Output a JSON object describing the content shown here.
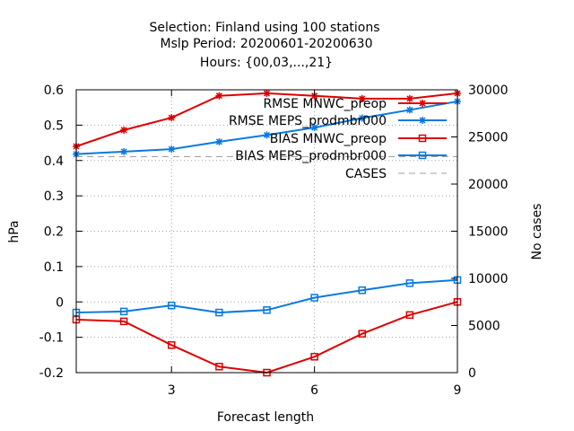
{
  "chart_data": {
    "type": "line",
    "title": [
      "Selection: Finland using   100 stations",
      "Mslp   Period: 20200601-20200630",
      "Hours: {00,03,...,21}"
    ],
    "xlabel": "Forecast length",
    "ylabel": "hPa",
    "y2label": "No cases",
    "xlim": [
      1,
      9
    ],
    "ylim": [
      -0.2,
      0.6
    ],
    "y2lim": [
      0,
      30000
    ],
    "xticks": [
      3,
      6,
      9
    ],
    "yticks": [
      -0.2,
      -0.1,
      0,
      0.1,
      0.2,
      0.3,
      0.4,
      0.5,
      0.6
    ],
    "yticklabels": [
      "-0.2",
      "-0.1",
      "0",
      "0.1",
      "0.2",
      "0.3",
      "0.4",
      "0.5",
      "0.6"
    ],
    "y2ticks": [
      0,
      5000,
      10000,
      15000,
      20000,
      25000,
      30000
    ],
    "grid": true,
    "legend_position": "top-right",
    "x": [
      1,
      2,
      3,
      4,
      5,
      6,
      7,
      8,
      9
    ],
    "series": [
      {
        "name": "RMSE MNWC_preop",
        "color": "#dd0000",
        "marker": "star",
        "axis": "y",
        "dash": false,
        "values": [
          0.44,
          0.486,
          0.521,
          0.583,
          0.59,
          0.583,
          0.575,
          0.575,
          0.59
        ]
      },
      {
        "name": "RMSE MEPS_prodmbr000",
        "color": "#0a7ae0",
        "marker": "star",
        "axis": "y",
        "dash": false,
        "values": [
          0.418,
          0.425,
          0.432,
          0.453,
          0.472,
          0.493,
          0.52,
          0.543,
          0.567
        ]
      },
      {
        "name": "BIAS MNWC_preop",
        "color": "#dd0000",
        "marker": "square",
        "axis": "y",
        "dash": false,
        "values": [
          -0.05,
          -0.055,
          -0.122,
          -0.183,
          -0.2,
          -0.155,
          -0.09,
          -0.037,
          0.0
        ]
      },
      {
        "name": "BIAS MEPS_prodmbr000",
        "color": "#0a7ae0",
        "marker": "square",
        "axis": "y",
        "dash": false,
        "values": [
          -0.03,
          -0.027,
          -0.01,
          -0.03,
          -0.023,
          0.012,
          0.033,
          0.053,
          0.062
        ]
      },
      {
        "name": "CASES",
        "color": "#a0a0a0",
        "marker": "none",
        "axis": "y2",
        "dash": true,
        "values": [
          22900,
          22900,
          22900,
          22900,
          22900,
          22900,
          22900,
          22900,
          22900
        ]
      }
    ]
  }
}
